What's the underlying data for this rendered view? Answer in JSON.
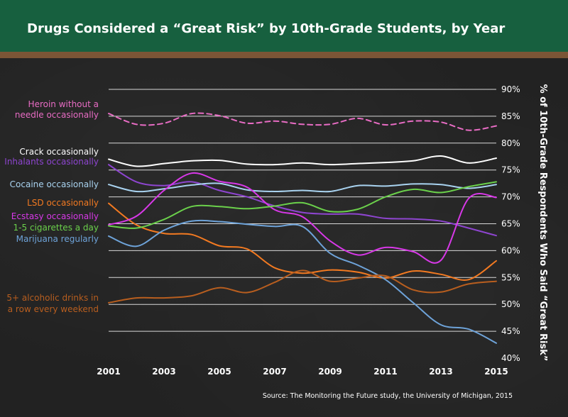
{
  "title": "Drugs Considered a “Great Risk” by 10th-Grade Students, by Year",
  "source": "Source: The Monitoring the Future study, the University of Michigan, 2015",
  "chart_data": {
    "type": "line",
    "ylabel": "% of 10th-Grade Respondents Who Said “Great Risk”",
    "xlabel": "",
    "ylim": [
      40,
      90
    ],
    "xlim": [
      2001,
      2015
    ],
    "x_ticks": [
      2001,
      2003,
      2005,
      2007,
      2009,
      2011,
      2013,
      2015
    ],
    "y_ticks": [
      40,
      45,
      50,
      55,
      60,
      65,
      70,
      75,
      80,
      85,
      90
    ],
    "y_tick_labels": [
      "40%",
      "45%",
      "50%",
      "55%",
      "60%",
      "65%",
      "70%",
      "75%",
      "80%",
      "85%",
      "90%"
    ],
    "grid": "horizontal",
    "x": [
      2001,
      2002,
      2003,
      2004,
      2005,
      2006,
      2007,
      2008,
      2009,
      2010,
      2011,
      2012,
      2013,
      2014,
      2015
    ],
    "series": [
      {
        "name": "Heroin without a needle occasionally",
        "color": "#e86cc4",
        "dashed": true,
        "label_lines": [
          "Heroin without a",
          "needle occasionally"
        ],
        "values": [
          85.5,
          83.5,
          83.7,
          85.5,
          85.1,
          83.7,
          84.1,
          83.5,
          83.5,
          84.6,
          83.4,
          84.1,
          83.9,
          82.4,
          83.2
        ]
      },
      {
        "name": "Crack occasionally",
        "color": "#ffffff",
        "label_lines": [
          "Crack occasionally"
        ],
        "values": [
          77.0,
          75.7,
          76.2,
          76.7,
          76.8,
          76.1,
          76.0,
          76.3,
          76.0,
          76.2,
          76.4,
          76.7,
          77.6,
          76.3,
          77.2
        ]
      },
      {
        "name": "Inhalants occasionally",
        "color": "#8e45d0",
        "label_lines": [
          "Inhalants occasionally"
        ],
        "values": [
          76.0,
          72.8,
          72.1,
          72.8,
          71.2,
          70.0,
          68.3,
          67.1,
          66.8,
          66.8,
          66.0,
          65.9,
          65.5,
          64.2,
          62.8
        ]
      },
      {
        "name": "Cocaine occasionally",
        "color": "#a9d3f0",
        "label_lines": [
          "Cocaine occasionally"
        ],
        "values": [
          72.3,
          71.0,
          71.5,
          72.2,
          72.5,
          71.3,
          71.0,
          71.2,
          71.0,
          72.1,
          72.0,
          72.4,
          72.3,
          71.6,
          72.3
        ]
      },
      {
        "name": "LSD occasionally",
        "color": "#f37a21",
        "label_lines": [
          "LSD occasionally"
        ],
        "values": [
          68.8,
          64.8,
          63.2,
          63.0,
          60.9,
          60.3,
          56.8,
          55.8,
          56.4,
          56.0,
          54.9,
          56.2,
          55.6,
          54.6,
          58.1
        ]
      },
      {
        "name": "Ecstasy occasionally",
        "color": "#d838e8",
        "label_lines": [
          "Ecstasy occasionally"
        ],
        "values": [
          64.8,
          66.4,
          71.2,
          74.4,
          72.9,
          71.8,
          67.6,
          66.3,
          61.8,
          59.2,
          60.6,
          59.8,
          58.2,
          69.7,
          69.9
        ]
      },
      {
        "name": "1-5 cigarettes a day",
        "color": "#6bd14b",
        "label_lines": [
          "1-5 cigarettes a day"
        ],
        "values": [
          64.6,
          64.2,
          65.8,
          68.2,
          68.2,
          67.8,
          68.3,
          68.9,
          67.3,
          67.7,
          70.0,
          71.4,
          70.8,
          71.9,
          72.8
        ]
      },
      {
        "name": "Marijuana regularly",
        "color": "#6ea3d9",
        "label_lines": [
          "Marijuana regularly"
        ],
        "values": [
          62.7,
          60.8,
          63.8,
          65.5,
          65.4,
          64.9,
          64.5,
          64.5,
          59.5,
          57.3,
          54.6,
          50.3,
          46.2,
          45.4,
          42.8
        ]
      },
      {
        "name": "5+ alcoholic drinks in a row every weekend",
        "color": "#b85e1f",
        "label_lines": [
          "5+ alcoholic drinks in",
          "a row every weekend"
        ],
        "values": [
          50.3,
          51.2,
          51.2,
          51.6,
          53.1,
          52.2,
          54.1,
          56.3,
          54.3,
          54.9,
          55.3,
          52.7,
          52.3,
          53.8,
          54.3
        ]
      }
    ]
  }
}
